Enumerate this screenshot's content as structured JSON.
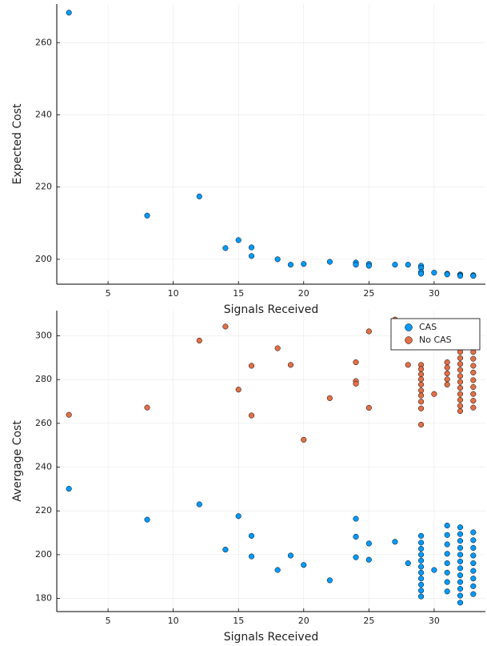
{
  "chart_data": [
    {
      "type": "scatter",
      "xlabel": "Signals Received",
      "ylabel": "Expected Cost",
      "color": "#009afa",
      "x": [
        2,
        8,
        12,
        14,
        15,
        16,
        16,
        18,
        19,
        20,
        22,
        24,
        24,
        25,
        25,
        27,
        28,
        29,
        29,
        29,
        29,
        30,
        31,
        31,
        32,
        32,
        32,
        33,
        33
      ],
      "values": [
        268.3,
        212.1,
        217.4,
        203.1,
        205.3,
        203.3,
        200.9,
        200,
        198.5,
        198.7,
        199.3,
        199.1,
        198.5,
        198.7,
        198.2,
        198.5,
        198.5,
        198.2,
        197.6,
        196.5,
        196.0,
        196.3,
        196.0,
        195.8,
        195.8,
        195.6,
        195.4,
        195.6,
        195.4
      ],
      "xlim": [
        1.07,
        33.93
      ],
      "xticks": [
        5,
        10,
        15,
        20,
        25,
        30
      ],
      "ylim": [
        193.1,
        270.7
      ],
      "yticks": [
        200,
        220,
        240,
        260
      ],
      "grid": true
    },
    {
      "type": "scatter",
      "xlabel": "Signals Received",
      "ylabel": "Avergage Cost",
      "legend": "top-right",
      "series": [
        {
          "name": "CAS",
          "color": "#009afa",
          "x": [
            2,
            8,
            12,
            14,
            15,
            16,
            16,
            18,
            19,
            20,
            22,
            24,
            24,
            24,
            25,
            25,
            27,
            28,
            29,
            29,
            29,
            29,
            29,
            29,
            29,
            29,
            29,
            29,
            29,
            30,
            31,
            31,
            31,
            31,
            31,
            31,
            31,
            31,
            32,
            32,
            32,
            32,
            32,
            32,
            32,
            32,
            32,
            32,
            32,
            32,
            33,
            33,
            33,
            33,
            33,
            33,
            33,
            33,
            33
          ],
          "values": [
            230.1,
            216,
            223,
            202.3,
            217.6,
            208.6,
            199.2,
            193,
            199.6,
            195.3,
            188.3,
            216.4,
            208.2,
            198.8,
            205.1,
            197.7,
            205.9,
            196.1,
            208.6,
            205.5,
            202.7,
            200,
            197.3,
            194.5,
            191.8,
            189.1,
            186.3,
            183.6,
            180.9,
            193,
            213.3,
            209,
            204.7,
            200.4,
            196.1,
            191.8,
            187.5,
            183.2,
            212.5,
            209.4,
            206.3,
            203.1,
            200,
            196.9,
            193.8,
            190.6,
            187.5,
            184.4,
            181.3,
            178.1,
            210.2,
            206.6,
            203.1,
            199.6,
            196.1,
            192.6,
            189.1,
            185.6,
            182
          ]
        },
        {
          "name": "No CAS",
          "color": "#e26f46",
          "x": [
            2,
            8,
            12,
            14,
            15,
            16,
            16,
            18,
            19,
            20,
            22,
            24,
            24,
            24,
            25,
            25,
            27,
            28,
            29,
            29,
            29,
            29,
            29,
            29,
            29,
            29,
            29,
            29,
            30,
            31,
            31,
            31,
            31,
            31,
            32,
            32,
            32,
            32,
            32,
            32,
            32,
            32,
            32,
            32,
            32,
            32,
            32,
            32,
            33,
            33,
            33,
            33,
            33,
            33,
            33,
            33,
            33,
            33,
            33,
            33
          ],
          "values": [
            263.9,
            267.2,
            297.8,
            304.2,
            275.4,
            286.3,
            263.6,
            294.3,
            286.7,
            252.5,
            271.5,
            287.9,
            279.3,
            278.1,
            302,
            267.1,
            307.4,
            286.7,
            286.7,
            284.8,
            282.4,
            280.1,
            277.7,
            275,
            272.7,
            269.9,
            266.8,
            259.4,
            273.4,
            287.9,
            285.5,
            282.8,
            280.1,
            277.7,
            301.6,
            298.4,
            295.3,
            292.6,
            289.8,
            287.1,
            284.4,
            281.6,
            278.9,
            276.2,
            273.4,
            270.7,
            268,
            265.6,
            302.3,
            299.2,
            295.7,
            292.6,
            289.5,
            286.3,
            283.2,
            279.7,
            276.6,
            273.4,
            270.3,
            267.2
          ]
        }
      ],
      "xlim": [
        1.07,
        33.93
      ],
      "xticks": [
        5,
        10,
        15,
        20,
        25,
        30
      ],
      "ylim": [
        174,
        311.5
      ],
      "yticks": [
        180,
        200,
        220,
        240,
        260,
        280,
        300
      ],
      "grid": true
    }
  ]
}
